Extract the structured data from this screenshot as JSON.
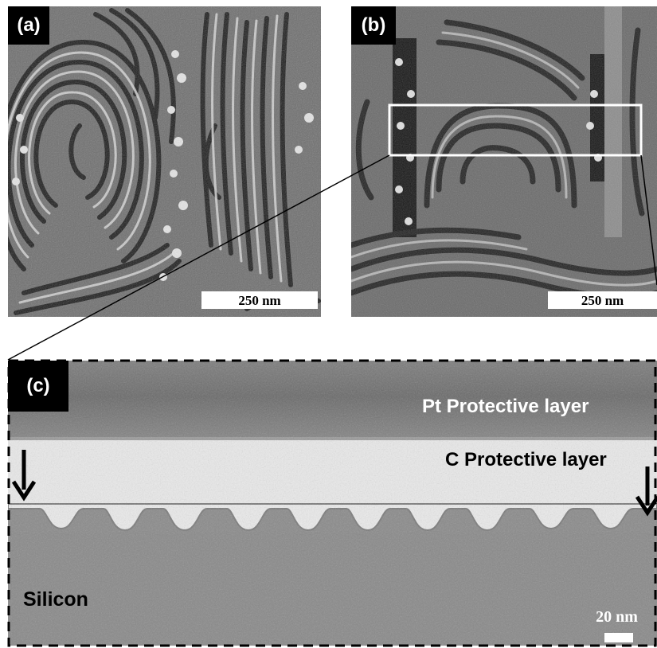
{
  "panels": {
    "a": {
      "tag": "(a)",
      "scale_bar": "250 nm"
    },
    "b": {
      "tag": "(b)",
      "scale_bar": "250 nm"
    },
    "c": {
      "tag": "(c)",
      "scale_bar": "20 nm",
      "layers": {
        "pt": "Pt Protective layer",
        "c": "C Protective layer",
        "silicon": "Silicon"
      }
    }
  }
}
